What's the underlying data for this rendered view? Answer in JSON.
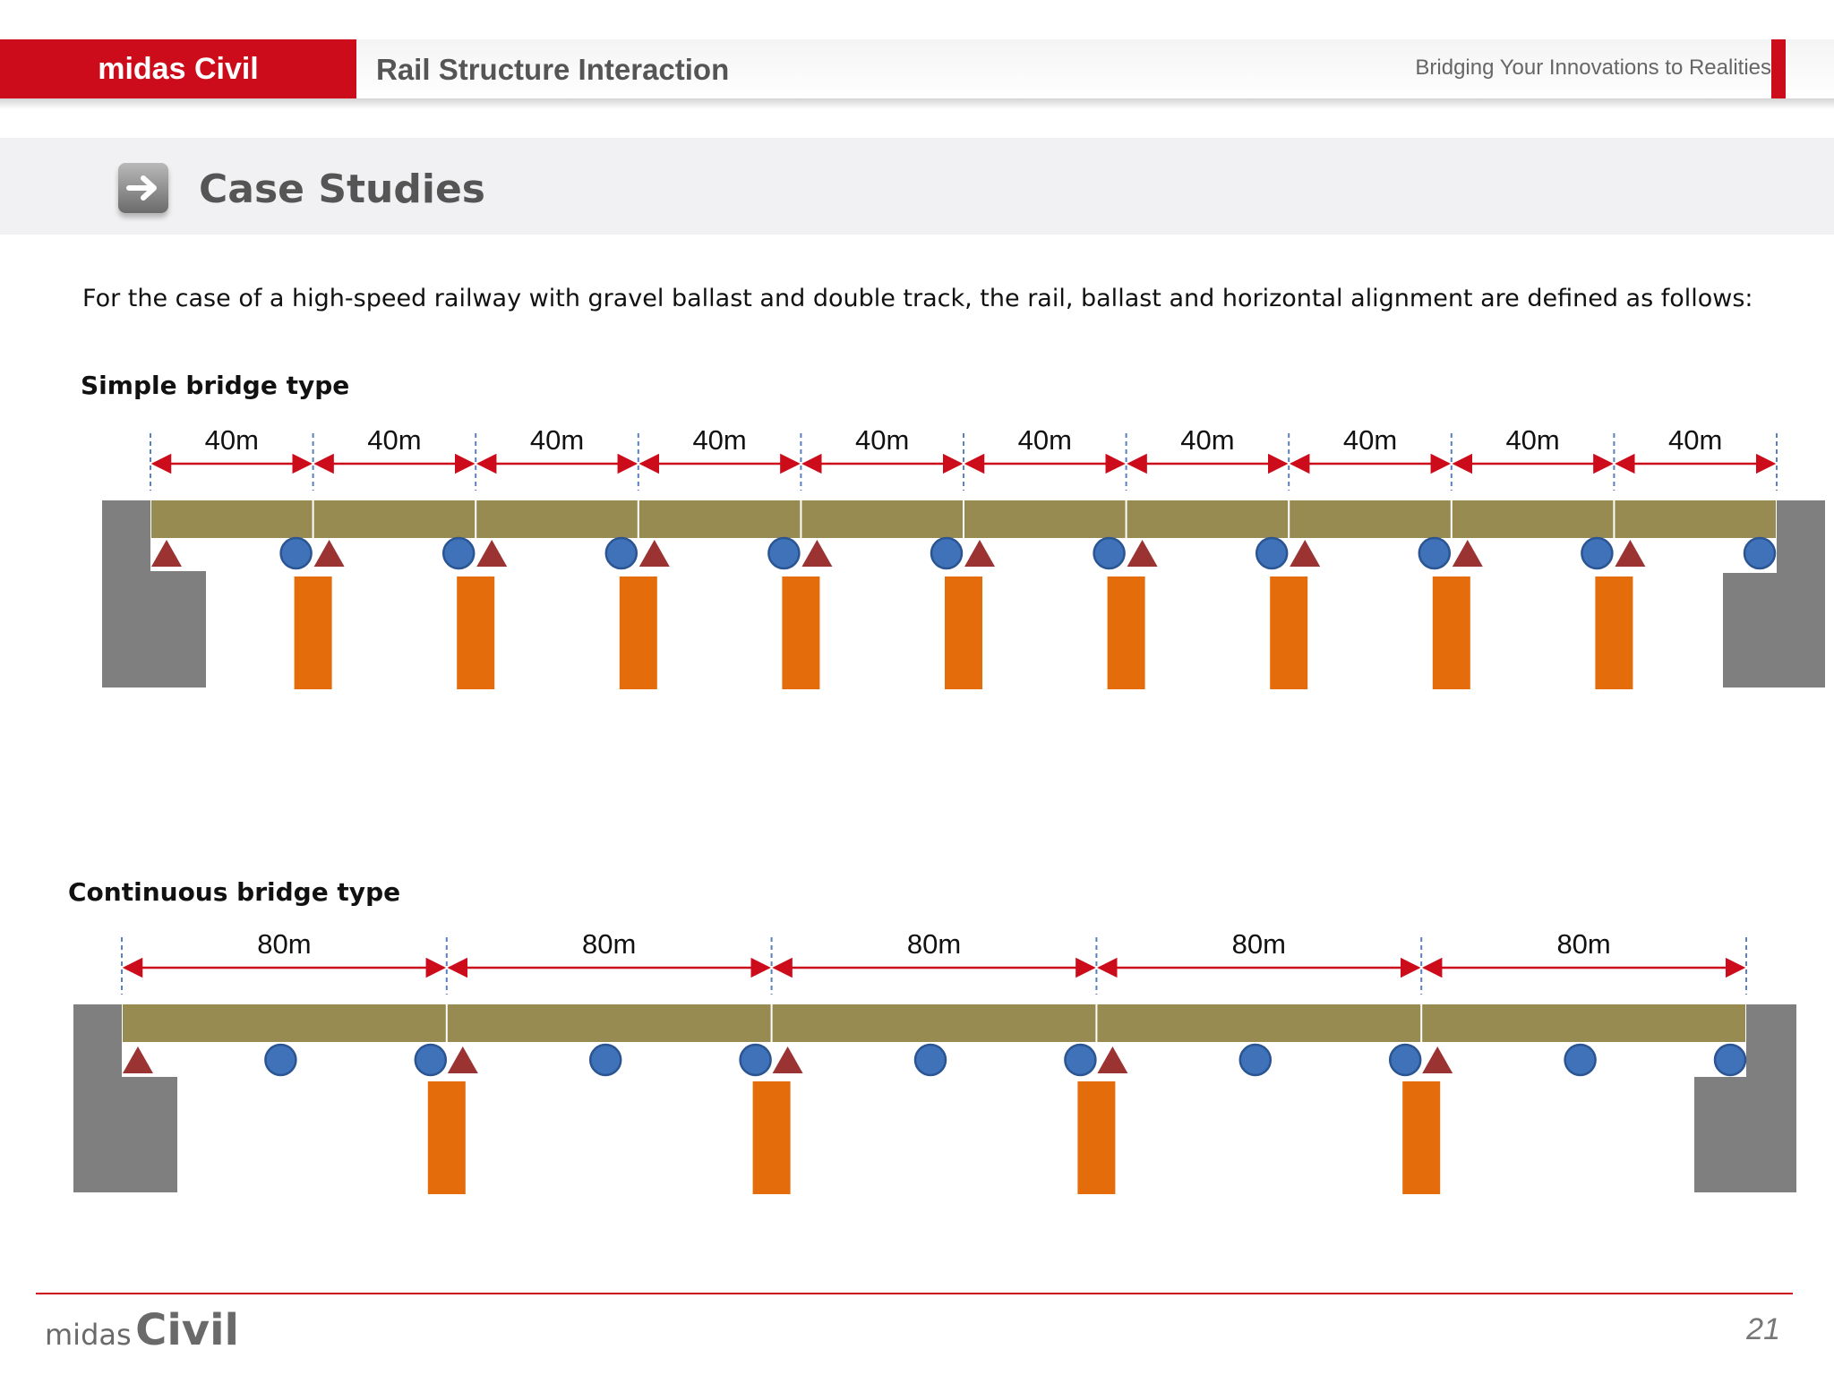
{
  "header": {
    "brand": "midas Civil",
    "title": "Rail Structure Interaction",
    "tagline": "Bridging Your Innovations to Realities"
  },
  "section": {
    "title": "Case Studies",
    "icon": "arrow-right-icon"
  },
  "intro_text": "For the case of a high-speed railway with gravel ballast and double track, the rail,  ballast and horizontal alignment are defined as follows:",
  "diagrams": {
    "simple": {
      "label": "Simple bridge type",
      "span_count": 10,
      "span_labels": [
        "40m",
        "40m",
        "40m",
        "40m",
        "40m",
        "40m",
        "40m",
        "40m",
        "40m",
        "40m"
      ]
    },
    "continuous": {
      "label": "Continuous bridge type",
      "span_count": 5,
      "span_labels": [
        "80m",
        "80m",
        "80m",
        "80m",
        "80m"
      ]
    }
  },
  "legend_symbols": {
    "fixed_bearing": "triangle",
    "movable_bearing": "circle"
  },
  "colors": {
    "brand_red": "#cc0c1a",
    "deck": "#978b52",
    "pier": "#e46c0a",
    "abutment": "#7f7f7f",
    "fixed_bearing": "#9b3333",
    "movable_bearing": "#3f72b8",
    "dimension": "#cc0c1a",
    "axis_line": "#5b7fbf"
  },
  "footer": {
    "brand_small": "midas",
    "brand_big": "Civil",
    "page_number": "21"
  }
}
